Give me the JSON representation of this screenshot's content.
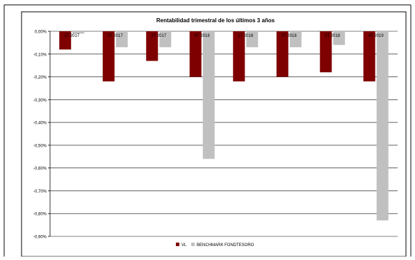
{
  "chart_data": {
    "type": "bar",
    "title": "Rentabilidad trimestral de los últimos 3 años",
    "categories": [
      "1T 2017",
      "2T 2017",
      "3T 2017",
      "4T 2018",
      "1T 2018",
      "2T 2018",
      "3T 2018",
      "4T 2019"
    ],
    "series": [
      {
        "name": "VL",
        "color": "#7f0000",
        "values": [
          -0.08,
          -0.22,
          -0.13,
          -0.2,
          -0.22,
          -0.2,
          -0.18,
          -0.22
        ]
      },
      {
        "name": "BENCHMARK FONDTESORO",
        "color": "#c0c0c0",
        "values": [
          -0.01,
          -0.07,
          -0.07,
          -0.56,
          -0.07,
          -0.07,
          -0.06,
          -0.83
        ]
      }
    ],
    "yticks": [
      "0,00%",
      "-0,10%",
      "-0,20%",
      "-0,30%",
      "-0,40%",
      "-0,50%",
      "-0,60%",
      "-0,70%",
      "-0,80%",
      "-0,90%"
    ],
    "ylim": [
      -0.9,
      0
    ],
    "xlabel": "",
    "ylabel": "",
    "grid": true,
    "legend_position": "bottom"
  }
}
